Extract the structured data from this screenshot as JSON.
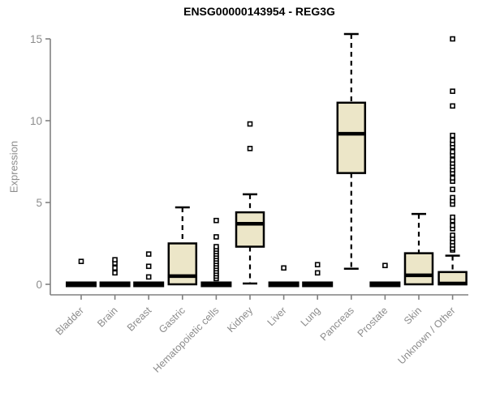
{
  "title": "ENSG00000143954 - REG3G",
  "chart_data": {
    "type": "box",
    "title": "ENSG00000143954 - REG3G",
    "ylabel": "Expression",
    "xlabel": "",
    "yticks": [
      0,
      5,
      10,
      15
    ],
    "ylim": [
      -0.6,
      15.8
    ],
    "grid": false,
    "legend": "none",
    "categories": [
      "Bladder",
      "Brain",
      "Breast",
      "Gastric",
      "Hematopoietic cells",
      "Kidney",
      "Liver",
      "Lung",
      "Pancreas",
      "Prostate",
      "Skin",
      "Unknown / Other"
    ],
    "series": [
      {
        "name": "Bladder",
        "whisker_low": 0,
        "q1": 0,
        "median": 0,
        "q3": 0,
        "whisker_high": 0,
        "outliers": [
          1.4
        ]
      },
      {
        "name": "Brain",
        "whisker_low": 0,
        "q1": 0,
        "median": 0,
        "q3": 0,
        "whisker_high": 0,
        "outliers": [
          0.7,
          1.0,
          1.3,
          1.5
        ]
      },
      {
        "name": "Breast",
        "whisker_low": 0,
        "q1": 0,
        "median": 0,
        "q3": 0,
        "whisker_high": 0,
        "outliers": [
          0.45,
          1.1,
          1.85
        ]
      },
      {
        "name": "Gastric",
        "whisker_low": 0,
        "q1": 0,
        "median": 0.5,
        "q3": 2.5,
        "whisker_high": 4.7,
        "outliers": []
      },
      {
        "name": "Hematopoietic cells",
        "whisker_low": 0,
        "q1": 0,
        "median": 0,
        "q3": 0,
        "whisker_high": 0,
        "outliers": [
          0.35,
          0.5,
          0.65,
          0.8,
          0.95,
          1.1,
          1.25,
          1.4,
          1.55,
          1.7,
          1.85,
          2.0,
          2.15,
          2.3,
          2.9,
          3.9
        ]
      },
      {
        "name": "Kidney",
        "whisker_low": 0.05,
        "q1": 2.3,
        "median": 3.7,
        "q3": 4.4,
        "whisker_high": 5.5,
        "outliers": [
          8.3,
          9.8
        ]
      },
      {
        "name": "Liver",
        "whisker_low": 0,
        "q1": 0,
        "median": 0,
        "q3": 0,
        "whisker_high": 0,
        "outliers": [
          1.0
        ]
      },
      {
        "name": "Lung",
        "whisker_low": 0,
        "q1": 0,
        "median": 0,
        "q3": 0,
        "whisker_high": 0,
        "outliers": [
          0.7,
          1.2
        ]
      },
      {
        "name": "Pancreas",
        "whisker_low": 0.95,
        "q1": 6.8,
        "median": 9.2,
        "q3": 11.1,
        "whisker_high": 15.3,
        "outliers": []
      },
      {
        "name": "Prostate",
        "whisker_low": 0,
        "q1": 0,
        "median": 0,
        "q3": 0,
        "whisker_high": 0,
        "outliers": [
          1.15
        ]
      },
      {
        "name": "Skin",
        "whisker_low": 0,
        "q1": 0,
        "median": 0.55,
        "q3": 1.9,
        "whisker_high": 4.3,
        "outliers": []
      },
      {
        "name": "Unknown / Other",
        "whisker_low": 0,
        "q1": 0,
        "median": 0.05,
        "q3": 0.75,
        "whisker_high": 1.75,
        "outliers": [
          2.1,
          2.2,
          2.4,
          2.6,
          2.8,
          3.0,
          3.4,
          3.6,
          3.9,
          4.1,
          4.9,
          5.1,
          5.3,
          5.8,
          6.3,
          6.5,
          6.8,
          7.0,
          7.2,
          7.4,
          7.6,
          7.9,
          8.1,
          8.4,
          8.6,
          8.8,
          9.1,
          10.9,
          11.8,
          15.0
        ]
      }
    ],
    "colors": {
      "box_fill": "#ece6c8",
      "box_border": "#000000",
      "median": "#000000",
      "whisker": "#000000",
      "outlier": "#000000",
      "axis_line": "#808080",
      "tick_label": "#8c8c8c",
      "title": "#000000",
      "background": "#ffffff"
    }
  }
}
